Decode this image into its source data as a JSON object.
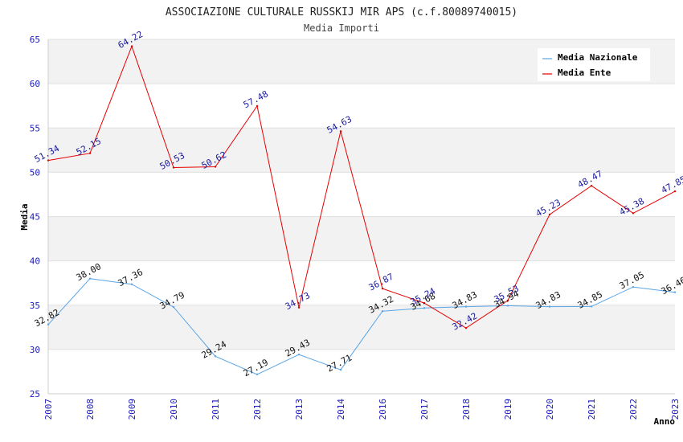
{
  "chart_data": {
    "type": "line",
    "title": "ASSOCIAZIONE CULTURALE RUSSKIJ MIR APS (c.f.80089740015)",
    "subtitle": "Media Importi",
    "xlabel": "Anno",
    "ylabel": "Media",
    "ylim": [
      25,
      65
    ],
    "yticks": [
      "25",
      "30",
      "35",
      "40",
      "45",
      "50",
      "55",
      "60",
      "65"
    ],
    "categories": [
      "2007",
      "2008",
      "2009",
      "2010",
      "2011",
      "2012",
      "2013",
      "2014",
      "2016",
      "2017",
      "2018",
      "2019",
      "2020",
      "2021",
      "2022",
      "2023"
    ],
    "grid": "horizontal bands",
    "legend_position": "top-right",
    "series": [
      {
        "name": "Media Nazionale",
        "color": "#5aa5e6",
        "label_color": "#111111",
        "values": [
          32.82,
          38.0,
          37.36,
          34.79,
          29.24,
          27.19,
          29.43,
          27.71,
          34.32,
          34.68,
          34.83,
          34.94,
          34.83,
          34.85,
          37.05,
          36.46
        ],
        "labels": [
          "32.82",
          "38.00",
          "37.36",
          "34.79",
          "29.24",
          "27.19",
          "29.43",
          "27.71",
          "34.32",
          "34.68",
          "34.83",
          "34.94",
          "34.83",
          "34.85",
          "37.05",
          "36.46"
        ]
      },
      {
        "name": "Media Ente",
        "color": "#e60000",
        "label_color": "#1a1a9a",
        "values": [
          51.34,
          52.15,
          64.22,
          50.53,
          50.62,
          57.48,
          34.73,
          54.63,
          36.87,
          35.24,
          32.42,
          35.53,
          45.23,
          48.47,
          45.38,
          47.85
        ],
        "labels": [
          "51.34",
          "52.15",
          "64.22",
          "50.53",
          "50.62",
          "57.48",
          "34.73",
          "54.63",
          "36.87",
          "35.24",
          "32.42",
          "35.53",
          "45.23",
          "48.47",
          "45.38",
          "47.85"
        ]
      }
    ]
  }
}
